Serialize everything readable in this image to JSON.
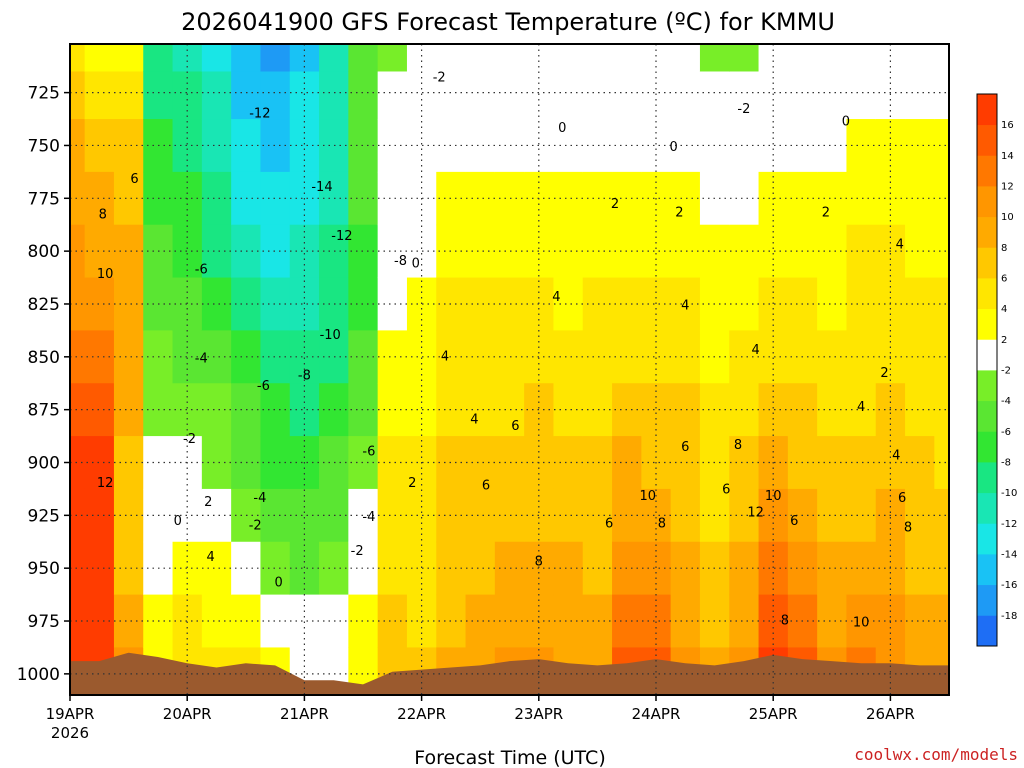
{
  "page": {
    "title": "2026041900 GFS Forecast Temperature (ºC) for KMMU",
    "credit": "coolwx.com/models"
  },
  "chart_data": {
    "type": "heatmap",
    "title": "2026041900 GFS Forecast Temperature (ºC) for KMMU",
    "xlabel": "Forecast Time (UTC)",
    "ylabel": "",
    "x_range": [
      0,
      7.5
    ],
    "x_unit": "days from 19APR 00Z",
    "x_ticks": [
      {
        "value": 0,
        "label": "19APR",
        "sublabel": "2026"
      },
      {
        "value": 1,
        "label": "20APR"
      },
      {
        "value": 2,
        "label": "21APR"
      },
      {
        "value": 3,
        "label": "22APR"
      },
      {
        "value": 4,
        "label": "23APR"
      },
      {
        "value": 5,
        "label": "24APR"
      },
      {
        "value": 6,
        "label": "25APR"
      },
      {
        "value": 7,
        "label": "26APR"
      }
    ],
    "y_range": [
      1010,
      702
    ],
    "y_unit": "hPa",
    "y_ticks": [
      {
        "value": 725,
        "label": "725"
      },
      {
        "value": 750,
        "label": "750"
      },
      {
        "value": 775,
        "label": "775"
      },
      {
        "value": 800,
        "label": "800"
      },
      {
        "value": 825,
        "label": "825"
      },
      {
        "value": 850,
        "label": "850"
      },
      {
        "value": 875,
        "label": "875"
      },
      {
        "value": 900,
        "label": "900"
      },
      {
        "value": 925,
        "label": "925"
      },
      {
        "value": 950,
        "label": "950"
      },
      {
        "value": 975,
        "label": "975"
      },
      {
        "value": 1000,
        "label": "1000"
      }
    ],
    "colorbar": {
      "levels": [
        -20,
        -18,
        -16,
        -14,
        -12,
        -10,
        -8,
        -6,
        -4,
        -2,
        2,
        4,
        6,
        8,
        10,
        12,
        14,
        16,
        18
      ],
      "colors": [
        "#1e6ef5",
        "#1e9af5",
        "#19c2f5",
        "#19e6e6",
        "#19e6b4",
        "#19e682",
        "#32e632",
        "#5ae632",
        "#78ee28",
        "#ffffff",
        "#ffff00",
        "#ffe600",
        "#ffc800",
        "#ffaa00",
        "#ff9600",
        "#ff7800",
        "#ff5a00",
        "#ff3c00"
      ],
      "tick_labels": [
        "16",
        "14",
        "12",
        "10",
        "8",
        "6",
        "4",
        "2",
        "-2",
        "-4",
        "-6",
        "-8",
        "-10",
        "-12",
        "-14",
        "-16",
        "-18"
      ]
    },
    "times": [
      0,
      0.25,
      0.5,
      0.75,
      1.0,
      1.25,
      1.5,
      1.75,
      2.0,
      2.25,
      2.5,
      2.75,
      3.0,
      3.25,
      3.5,
      3.75,
      4.0,
      4.25,
      4.5,
      4.75,
      5.0,
      5.25,
      5.5,
      5.75,
      6.0,
      6.25,
      6.5,
      6.75,
      7.0,
      7.25,
      7.5
    ],
    "levels_hpa": [
      705,
      725,
      750,
      775,
      800,
      825,
      850,
      875,
      900,
      925,
      950,
      975,
      1000
    ],
    "values_c": [
      [
        4,
        6,
        8,
        9,
        10,
        11,
        13,
        15,
        17,
        17,
        18,
        18,
        19
      ],
      [
        3,
        5,
        7,
        8,
        9,
        10,
        12,
        14,
        16,
        16,
        17,
        17,
        18
      ],
      [
        2,
        4,
        6,
        7,
        8,
        9,
        9,
        8,
        6,
        6,
        7,
        8,
        10
      ],
      [
        -10,
        -9,
        -8,
        -7,
        -6,
        -5,
        -4,
        -3,
        -2,
        -1,
        1,
        2,
        3
      ],
      [
        -11,
        -10,
        -9,
        -8,
        -7,
        -6,
        -5,
        -3,
        -2,
        1,
        3,
        4,
        5
      ],
      [
        -13,
        -12,
        -11,
        -10,
        -9,
        -8,
        -6,
        -4,
        -3,
        -1,
        2,
        3,
        4
      ],
      [
        -16,
        -15,
        -14,
        -13,
        -12,
        -10,
        -8,
        -6,
        -5,
        -4,
        -1,
        2,
        4
      ],
      [
        -17,
        -16,
        -15,
        -14,
        -13,
        -11,
        -10,
        -8,
        -7,
        -5,
        -3,
        1,
        3
      ],
      [
        -15,
        -14,
        -13,
        -13,
        -12,
        -11,
        -10,
        -9,
        -7,
        -6,
        -5,
        -2,
        1
      ],
      [
        -12,
        -11,
        -11,
        -11,
        -10,
        -10,
        -9,
        -8,
        -6,
        -5,
        -3,
        -2,
        0
      ],
      [
        -6,
        -5,
        -5,
        -6,
        -7,
        -7,
        -6,
        -5,
        -3,
        0,
        1,
        2,
        3
      ],
      [
        -3,
        -2,
        0,
        1,
        0,
        1,
        2,
        3,
        4,
        5,
        5,
        6,
        6
      ],
      [
        -2,
        -1,
        0,
        1,
        1,
        2,
        3,
        3,
        4,
        4,
        5,
        5,
        6
      ],
      [
        -2,
        -1,
        1,
        2,
        3,
        4,
        5,
        5,
        6,
        6,
        7,
        7,
        8
      ],
      [
        -2,
        0,
        1,
        2,
        3,
        4,
        5,
        5,
        6,
        6,
        7,
        8,
        8
      ],
      [
        -2,
        -1,
        1,
        2,
        3,
        4,
        4,
        5,
        6,
        7,
        8,
        9,
        10
      ],
      [
        -2,
        0,
        1,
        2,
        3,
        4,
        5,
        6,
        7,
        7,
        8,
        9,
        10
      ],
      [
        -2,
        0,
        1,
        2,
        3,
        3,
        4,
        5,
        6,
        7,
        8,
        8,
        9
      ],
      [
        -1,
        0,
        1,
        2,
        3,
        4,
        4,
        5,
        6,
        7,
        7,
        8,
        9
      ],
      [
        -2,
        0,
        1,
        2,
        3,
        4,
        5,
        6,
        8,
        9,
        10,
        12,
        14
      ],
      [
        -2,
        -1,
        1,
        2,
        3,
        4,
        5,
        6,
        7,
        9,
        10,
        12,
        15
      ],
      [
        -2,
        0,
        1,
        2,
        3,
        4,
        5,
        6,
        6,
        7,
        8,
        9,
        10
      ],
      [
        -3,
        -1,
        0,
        1,
        2,
        3,
        3,
        4,
        5,
        5,
        6,
        7,
        8
      ],
      [
        -3,
        -1,
        0,
        1,
        2,
        3,
        4,
        5,
        6,
        7,
        8,
        9,
        10
      ],
      [
        -2,
        -1,
        1,
        2,
        3,
        4,
        5,
        6,
        8,
        10,
        12,
        14,
        16
      ],
      [
        -2,
        -1,
        1,
        2,
        3,
        4,
        5,
        6,
        7,
        8,
        10,
        12,
        14
      ],
      [
        -1,
        0,
        1,
        2,
        3,
        3,
        4,
        5,
        6,
        7,
        8,
        9,
        10
      ],
      [
        0,
        1,
        2,
        3,
        4,
        4,
        5,
        5,
        6,
        7,
        8,
        10,
        12
      ],
      [
        0,
        1,
        2,
        3,
        4,
        4,
        5,
        6,
        7,
        8,
        9,
        10,
        11
      ],
      [
        1,
        1,
        2,
        3,
        3,
        4,
        4,
        5,
        6,
        7,
        7,
        8,
        9
      ],
      [
        1,
        1,
        2,
        3,
        3,
        4,
        4,
        5,
        5,
        6,
        7,
        8,
        8
      ]
    ],
    "freezing_contour_label": "0",
    "contour_labels": [
      {
        "t": 0.28,
        "p": 783,
        "text": "8"
      },
      {
        "t": 0.3,
        "p": 811,
        "text": "10"
      },
      {
        "t": 0.3,
        "p": 910,
        "text": "12"
      },
      {
        "t": 0.55,
        "p": 766,
        "text": "6"
      },
      {
        "t": 1.12,
        "p": 809,
        "text": "-6"
      },
      {
        "t": 1.12,
        "p": 851,
        "text": "-4"
      },
      {
        "t": 1.02,
        "p": 889,
        "text": "-2"
      },
      {
        "t": 0.92,
        "p": 928,
        "text": "0"
      },
      {
        "t": 1.18,
        "p": 919,
        "text": "2"
      },
      {
        "t": 1.2,
        "p": 945,
        "text": "4"
      },
      {
        "t": 1.62,
        "p": 735,
        "text": "-12"
      },
      {
        "t": 1.65,
        "p": 864,
        "text": "-6"
      },
      {
        "t": 1.62,
        "p": 917,
        "text": "-4"
      },
      {
        "t": 1.58,
        "p": 930,
        "text": "-2"
      },
      {
        "t": 1.78,
        "p": 957,
        "text": "0"
      },
      {
        "t": 2.15,
        "p": 770,
        "text": "-14"
      },
      {
        "t": 2.32,
        "p": 793,
        "text": "-12"
      },
      {
        "t": 2.22,
        "p": 840,
        "text": "-10"
      },
      {
        "t": 2.0,
        "p": 859,
        "text": "-8"
      },
      {
        "t": 2.82,
        "p": 805,
        "text": "-8"
      },
      {
        "t": 2.55,
        "p": 895,
        "text": "-6"
      },
      {
        "t": 2.55,
        "p": 926,
        "text": "-4"
      },
      {
        "t": 2.45,
        "p": 942,
        "text": "-2"
      },
      {
        "t": 2.95,
        "p": 806,
        "text": "0"
      },
      {
        "t": 3.15,
        "p": 718,
        "text": "-2"
      },
      {
        "t": 3.2,
        "p": 850,
        "text": "4"
      },
      {
        "t": 3.45,
        "p": 880,
        "text": "4"
      },
      {
        "t": 2.92,
        "p": 910,
        "text": "2"
      },
      {
        "t": 4.2,
        "p": 742,
        "text": "0"
      },
      {
        "t": 4.65,
        "p": 778,
        "text": "2"
      },
      {
        "t": 4.15,
        "p": 822,
        "text": "4"
      },
      {
        "t": 3.8,
        "p": 883,
        "text": "6"
      },
      {
        "t": 3.55,
        "p": 911,
        "text": "6"
      },
      {
        "t": 4.0,
        "p": 947,
        "text": "8"
      },
      {
        "t": 4.6,
        "p": 929,
        "text": "6"
      },
      {
        "t": 5.15,
        "p": 751,
        "text": "0"
      },
      {
        "t": 5.2,
        "p": 782,
        "text": "2"
      },
      {
        "t": 5.25,
        "p": 826,
        "text": "4"
      },
      {
        "t": 5.25,
        "p": 893,
        "text": "6"
      },
      {
        "t": 4.93,
        "p": 916,
        "text": "10"
      },
      {
        "t": 5.05,
        "p": 929,
        "text": "8"
      },
      {
        "t": 5.75,
        "p": 733,
        "text": "-2"
      },
      {
        "t": 5.85,
        "p": 847,
        "text": "4"
      },
      {
        "t": 5.7,
        "p": 892,
        "text": "8"
      },
      {
        "t": 5.6,
        "p": 913,
        "text": "6"
      },
      {
        "t": 6.0,
        "p": 916,
        "text": "10"
      },
      {
        "t": 5.85,
        "p": 924,
        "text": "12"
      },
      {
        "t": 6.18,
        "p": 928,
        "text": "6"
      },
      {
        "t": 6.1,
        "p": 975,
        "text": "8"
      },
      {
        "t": 6.62,
        "p": 739,
        "text": "0"
      },
      {
        "t": 6.45,
        "p": 782,
        "text": "2"
      },
      {
        "t": 7.08,
        "p": 797,
        "text": "4"
      },
      {
        "t": 6.75,
        "p": 874,
        "text": "4"
      },
      {
        "t": 6.95,
        "p": 858,
        "text": "2"
      },
      {
        "t": 7.05,
        "p": 897,
        "text": "4"
      },
      {
        "t": 7.1,
        "p": 917,
        "text": "6"
      },
      {
        "t": 7.15,
        "p": 931,
        "text": "8"
      },
      {
        "t": 6.75,
        "p": 976,
        "text": "10"
      }
    ],
    "terrain_surface_hpa": [
      994,
      994,
      990,
      992,
      995,
      997,
      995,
      996,
      1003,
      1003,
      1005,
      999,
      998,
      997,
      996,
      994,
      993,
      995,
      996,
      995,
      993,
      995,
      996,
      994,
      991,
      993,
      994,
      995,
      995,
      996,
      996
    ]
  }
}
